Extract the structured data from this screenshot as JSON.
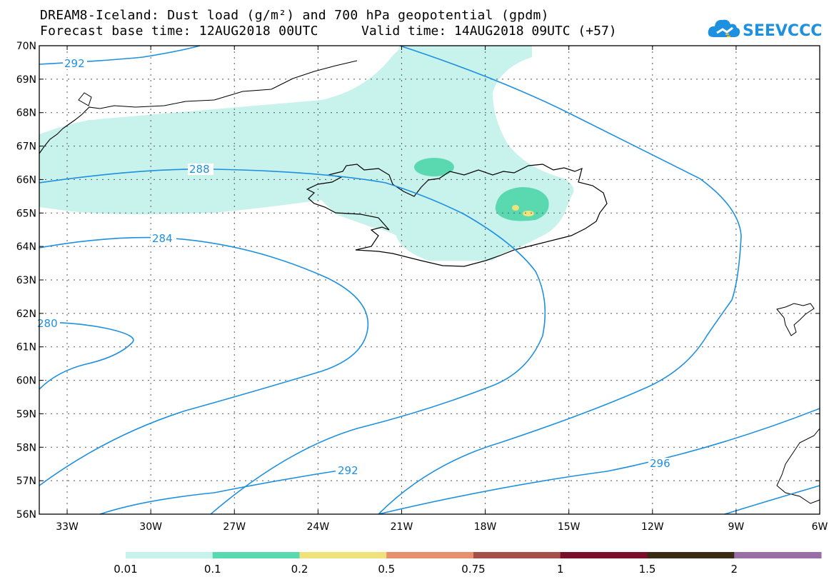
{
  "title": {
    "line1": "DREAM8-Iceland: Dust load (g/m²) and 700 hPa geopotential (gpdm)",
    "line2a": "Forecast base time: 12AUG2018 00UTC",
    "line2b": "Valid time: 14AUG2018 09UTC (+57)"
  },
  "logo": {
    "text": "SEEVCCC",
    "icon": "cloud-icon",
    "color": "#1e90e0"
  },
  "axes": {
    "lat_labels": [
      "70N",
      "69N",
      "68N",
      "67N",
      "66N",
      "65N",
      "64N",
      "63N",
      "62N",
      "61N",
      "60N",
      "59N",
      "58N",
      "57N",
      "56N"
    ],
    "lon_labels": [
      "33W",
      "30W",
      "27W",
      "24W",
      "21W",
      "18W",
      "15W",
      "12W",
      "9W",
      "6W"
    ],
    "lat_range": [
      56,
      70
    ],
    "lon_range": [
      -34,
      -6
    ]
  },
  "contours": {
    "color": "#1e90e0",
    "labels": [
      "292",
      "288",
      "284",
      "280",
      "292",
      "296"
    ]
  },
  "legend": {
    "thresholds": [
      "0.01",
      "0.1",
      "0.2",
      "0.5",
      "0.75",
      "1",
      "1.5",
      "2"
    ],
    "colors": [
      "#c8f2ec",
      "#5ad9b0",
      "#f0e27a",
      "#e8906e",
      "#a6504a",
      "#7a0f2c",
      "#3b2a14",
      "#9a6fa8"
    ]
  }
}
